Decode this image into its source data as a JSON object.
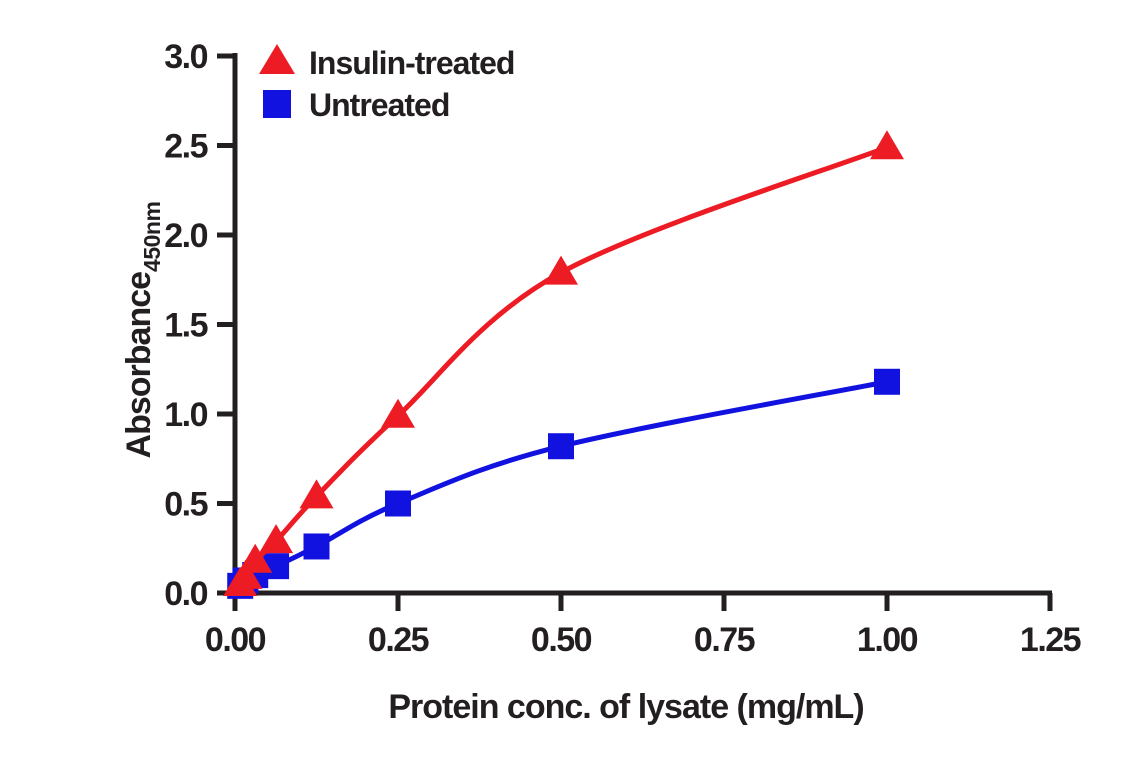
{
  "figure": {
    "background": "#ffffff",
    "axis_color": "#231f20"
  },
  "chart_data": {
    "type": "line",
    "title": "",
    "xlabel": "Protein conc. of lysate (mg/mL)",
    "ylabel": "Absorbance",
    "ylabel_subscript": "450nm",
    "xlim": [
      0,
      1.25
    ],
    "ylim": [
      0,
      3.0
    ],
    "x_ticks": [
      0,
      0.25,
      0.5,
      0.75,
      1.0,
      1.25
    ],
    "x_tick_labels": [
      "0.00",
      "0.25",
      "0.50",
      "0.75",
      "1.00",
      "1.25"
    ],
    "y_ticks": [
      0,
      0.5,
      1.0,
      1.5,
      2.0,
      2.5,
      3.0
    ],
    "y_tick_labels": [
      "0.0",
      "0.5",
      "1.0",
      "1.5",
      "2.0",
      "2.5",
      "3.0"
    ],
    "grid": false,
    "legend_position": "top-left-inside",
    "series": [
      {
        "name": "Untreated",
        "marker": "square",
        "color": "#1212e0",
        "x": [
          0.008,
          0.016,
          0.031,
          0.063,
          0.125,
          0.25,
          0.5,
          1.0
        ],
        "y": [
          0.04,
          0.07,
          0.1,
          0.15,
          0.26,
          0.5,
          0.82,
          1.18
        ]
      },
      {
        "name": "Insulin-treated",
        "marker": "triangle",
        "color": "#ed1c24",
        "x": [
          0.008,
          0.016,
          0.031,
          0.063,
          0.125,
          0.25,
          0.5,
          1.0
        ],
        "y": [
          0.05,
          0.09,
          0.18,
          0.29,
          0.54,
          0.99,
          1.79,
          2.49
        ]
      }
    ],
    "legend_order": [
      "Insulin-treated",
      "Untreated"
    ]
  }
}
